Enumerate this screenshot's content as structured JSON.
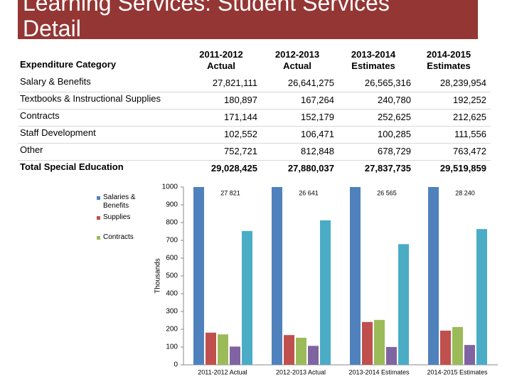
{
  "title": "Learning Services: Student Services Detail",
  "table": {
    "header": [
      "Expenditure Category",
      "2011-2012 Actual",
      "2012-2013 Actual",
      "2013-2014 Estimates",
      "2014-2015 Estimates"
    ],
    "rows": [
      [
        "Salary & Benefits",
        "27,821,111",
        "26,641,275",
        "26,565,316",
        "28,239,954"
      ],
      [
        "Textbooks & Instructional Supplies",
        "180,897",
        "167,264",
        "240,780",
        "192,252"
      ],
      [
        "Contracts",
        "171,144",
        "152,179",
        "252,625",
        "212,625"
      ],
      [
        "Staff Development",
        "102,552",
        "106,471",
        "100,285",
        "111,556"
      ],
      [
        "Other",
        "752,721",
        "812,848",
        "678,729",
        "763,472"
      ],
      [
        "Total Special Education",
        "29,028,425",
        "27,880,037",
        "27,837,735",
        "29,519,859"
      ]
    ]
  },
  "chart_data": {
    "type": "bar",
    "y_label": "Thousands",
    "categories": [
      "2011-2012 Actual",
      "2012-2013 Actual",
      "2013-2014 Estimates",
      "2014-2015 Estimates"
    ],
    "series": [
      {
        "name": "Salaries & Benefits",
        "color": "#4f81bd",
        "values": [
          27821.111,
          26641.275,
          26565.316,
          28239.954
        ],
        "value_labels": [
          "27 821",
          "26 641",
          "26 565",
          "28 240"
        ]
      },
      {
        "name": "Supplies",
        "color": "#c0504d",
        "values": [
          180.897,
          167.264,
          240.78,
          192.252
        ]
      },
      {
        "name": "Contracts",
        "color": "#9bbb59",
        "values": [
          171.144,
          152.179,
          252.625,
          212.625
        ]
      },
      {
        "color": "#8064a2",
        "values": [
          102.552,
          106.471,
          100.285,
          111.556
        ]
      },
      {
        "color": "#4bacc6",
        "values": [
          752.721,
          812.848,
          678.729,
          763.472
        ]
      }
    ],
    "ylim": [
      0,
      1000
    ],
    "yticks": [
      0,
      100,
      200,
      300,
      400,
      500,
      600,
      700,
      800,
      900,
      1000
    ],
    "grid": false
  }
}
